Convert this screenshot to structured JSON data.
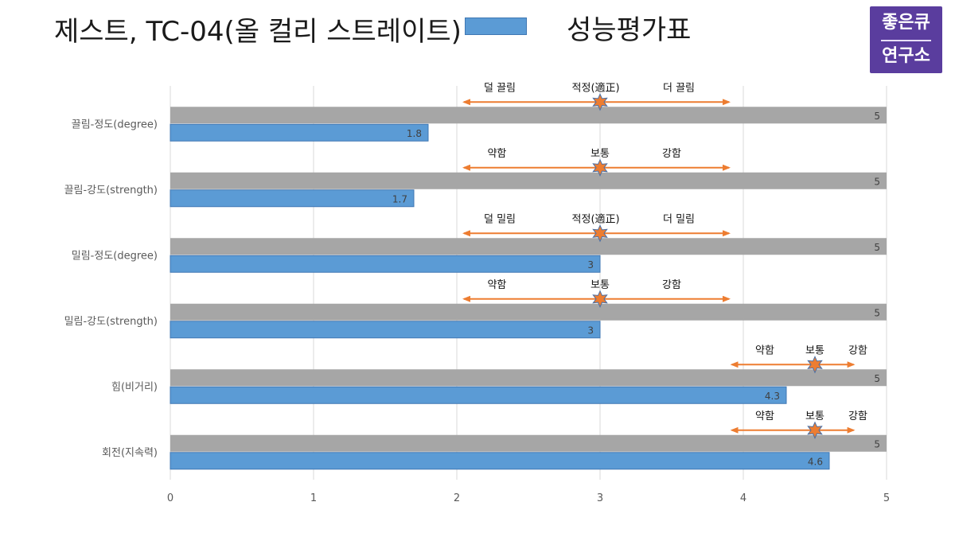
{
  "title": "제스트, TC-04(올 컬리 스트레이트)",
  "legend_label": "성능평가표",
  "logo": {
    "line1": "좋은큐",
    "line2": "연구소"
  },
  "colors": {
    "max_bar": "#a6a6a6",
    "value_bar": "#5b9bd5",
    "value_bar_edge": "#3f77b3",
    "arrow": "#ed7d31",
    "star_fill": "#ed7d31",
    "star_edge": "#4a6fa5",
    "grid": "#d9d9d9",
    "logo_bg": "#5a3d9e"
  },
  "chart_data": {
    "type": "bar",
    "orientation": "horizontal",
    "xlim": [
      0,
      5
    ],
    "x_ticks": [
      "0",
      "1",
      "2",
      "3",
      "4",
      "5"
    ],
    "categories": [
      "끌림-정도(degree)",
      "끌림-강도(strength)",
      "밀림-정도(degree)",
      "밀림-강도(strength)",
      "힘(비거리)",
      "회전(지속력)"
    ],
    "series": [
      {
        "values": [
          5,
          5,
          5,
          5,
          5,
          5
        ]
      },
      {
        "values": [
          1.8,
          1.7,
          3,
          3,
          4.3,
          4.6
        ]
      }
    ],
    "value_labels": {
      "max": [
        "5",
        "5",
        "5",
        "5",
        "5",
        "5"
      ],
      "value": [
        "1.8",
        "1.7",
        "3",
        "3",
        "4.3",
        "4.6"
      ]
    },
    "scale_annotations": [
      {
        "arrow_from": 2.05,
        "arrow_to": 3.9,
        "center": 3,
        "labels": [
          {
            "text": "덜 끌림",
            "x": 2.3
          },
          {
            "text": "적정(適正)",
            "x": 2.97
          },
          {
            "text": "더 끌림",
            "x": 3.55
          }
        ]
      },
      {
        "arrow_from": 2.05,
        "arrow_to": 3.9,
        "center": 3,
        "labels": [
          {
            "text": "약함",
            "x": 2.28
          },
          {
            "text": "보통",
            "x": 3
          },
          {
            "text": "강함",
            "x": 3.5
          }
        ]
      },
      {
        "arrow_from": 2.05,
        "arrow_to": 3.9,
        "center": 3,
        "labels": [
          {
            "text": "덜 밀림",
            "x": 2.3
          },
          {
            "text": "적정(適正)",
            "x": 2.97
          },
          {
            "text": "더 밀림",
            "x": 3.55
          }
        ]
      },
      {
        "arrow_from": 2.05,
        "arrow_to": 3.9,
        "center": 3,
        "labels": [
          {
            "text": "약함",
            "x": 2.28
          },
          {
            "text": "보통",
            "x": 3
          },
          {
            "text": "강함",
            "x": 3.5
          }
        ]
      },
      {
        "arrow_from": 3.92,
        "arrow_to": 4.77,
        "center": 4.5,
        "labels": [
          {
            "text": "약함",
            "x": 4.15
          },
          {
            "text": "보통",
            "x": 4.5
          },
          {
            "text": "강함",
            "x": 4.8
          }
        ]
      },
      {
        "arrow_from": 3.92,
        "arrow_to": 4.77,
        "center": 4.5,
        "labels": [
          {
            "text": "약함",
            "x": 4.15
          },
          {
            "text": "보통",
            "x": 4.5
          },
          {
            "text": "강함",
            "x": 4.8
          }
        ]
      }
    ]
  }
}
